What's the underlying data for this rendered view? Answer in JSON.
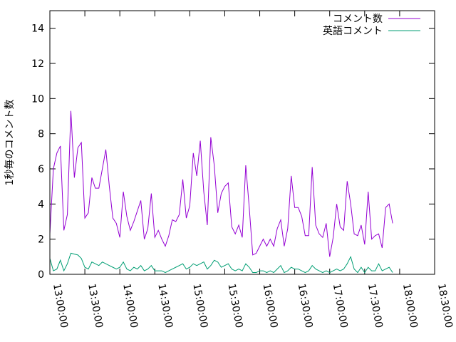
{
  "chart_data": {
    "type": "line",
    "title": "",
    "xlabel": "",
    "ylabel": "1秒毎のコメント数",
    "xlim": [
      "13:00:00",
      "18:30:00"
    ],
    "ylim": [
      0,
      15
    ],
    "yticks": [
      0,
      2,
      4,
      6,
      8,
      10,
      12,
      14
    ],
    "xticks": [
      "13:00:00",
      "13:30:00",
      "14:00:00",
      "14:30:00",
      "15:00:00",
      "15:30:00",
      "16:00:00",
      "16:30:00",
      "17:00:00",
      "17:30:00",
      "18:00:00",
      "18:30:00"
    ],
    "grid": false,
    "legend": "top-right",
    "x_step_minutes": 3,
    "series": [
      {
        "name": "コメント数",
        "color": "#9400d3",
        "values": [
          2.3,
          6.0,
          6.9,
          7.3,
          2.5,
          3.4,
          9.3,
          5.5,
          7.2,
          7.5,
          3.2,
          3.5,
          5.5,
          4.9,
          4.9,
          6.0,
          7.1,
          5.0,
          3.2,
          2.9,
          2.1,
          4.7,
          3.3,
          2.5,
          3.0,
          3.6,
          4.2,
          2.0,
          2.6,
          4.6,
          2.1,
          2.5,
          2.0,
          1.6,
          2.2,
          3.1,
          3.0,
          3.4,
          5.4,
          3.2,
          3.9,
          6.9,
          5.6,
          7.6,
          4.7,
          2.8,
          7.8,
          6.2,
          3.5,
          4.6,
          5.0,
          5.2,
          2.7,
          2.3,
          2.8,
          2.1,
          6.2,
          3.8,
          1.1,
          1.2,
          1.6,
          2.0,
          1.6,
          2.0,
          1.6,
          2.6,
          3.1,
          1.6,
          2.6,
          5.6,
          3.8,
          3.8,
          3.3,
          2.2,
          2.2,
          6.1,
          2.8,
          2.3,
          2.1,
          2.9,
          1.0,
          2.1,
          4.0,
          2.7,
          2.5,
          5.3,
          4.0,
          2.3,
          2.2,
          2.8,
          1.7,
          4.7,
          2.0,
          2.2,
          2.3,
          1.5,
          3.8,
          4.0,
          2.9
        ]
      },
      {
        "name": "英語コメント",
        "color": "#009e73",
        "values": [
          0.9,
          0.2,
          0.3,
          0.8,
          0.2,
          0.6,
          1.2,
          1.15,
          1.1,
          0.9,
          0.4,
          0.3,
          0.7,
          0.6,
          0.5,
          0.7,
          0.6,
          0.5,
          0.4,
          0.3,
          0.4,
          0.7,
          0.3,
          0.2,
          0.4,
          0.3,
          0.5,
          0.2,
          0.3,
          0.5,
          0.2,
          0.2,
          0.2,
          0.1,
          0.2,
          0.3,
          0.4,
          0.5,
          0.6,
          0.3,
          0.4,
          0.6,
          0.5,
          0.6,
          0.7,
          0.3,
          0.5,
          0.8,
          0.7,
          0.4,
          0.5,
          0.6,
          0.3,
          0.2,
          0.3,
          0.2,
          0.6,
          0.4,
          0.1,
          0.1,
          0.2,
          0.2,
          0.1,
          0.2,
          0.1,
          0.3,
          0.5,
          0.1,
          0.2,
          0.4,
          0.3,
          0.3,
          0.2,
          0.1,
          0.2,
          0.5,
          0.3,
          0.2,
          0.1,
          0.2,
          0.1,
          0.2,
          0.3,
          0.2,
          0.3,
          0.6,
          1.0,
          0.3,
          0.1,
          0.4,
          0.1,
          0.4,
          0.2,
          0.2,
          0.6,
          0.2,
          0.3,
          0.4,
          0.1
        ]
      }
    ]
  }
}
